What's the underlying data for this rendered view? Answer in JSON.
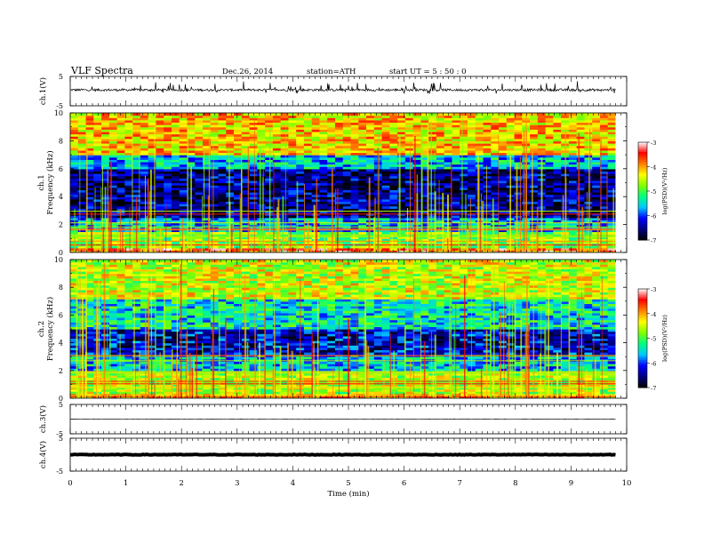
{
  "header": {
    "title": "VLF  Spectra",
    "date": "Dec.26, 2014",
    "station": "station=ATH",
    "start": "start  UT =   5 : 50 : 0"
  },
  "chart_data": [
    {
      "type": "line",
      "panel": "ch1-waveform",
      "ylabel": "ch.1(V)",
      "ylim": [
        -5,
        5
      ],
      "yticks": [
        "5",
        "-5"
      ],
      "xlim": [
        0,
        10
      ],
      "description_values": {
        "baseline_v": 0.4,
        "spike_amplitude_v": 1.5
      },
      "color": "#000000"
    },
    {
      "type": "heatmap",
      "panel": "ch1-spectrogram",
      "ylabel_channel": "ch.1",
      "ylabel": "Frequency  (kHz)",
      "ylim": [
        0,
        10
      ],
      "yticks": [
        "0",
        "2",
        "4",
        "6",
        "8",
        "10"
      ],
      "xlim": [
        0,
        9.8
      ],
      "bands": [
        {
          "f_lo": 0,
          "f_hi": 0.4,
          "level": -3.6
        },
        {
          "f_lo": 0.4,
          "f_hi": 1.5,
          "level": -4.8
        },
        {
          "f_lo": 1.5,
          "f_hi": 2.5,
          "level": -5.7
        },
        {
          "f_lo": 2.5,
          "f_hi": 6.0,
          "level": -6.5
        },
        {
          "f_lo": 6.0,
          "f_hi": 7.0,
          "level": -5.6
        },
        {
          "f_lo": 7.0,
          "f_hi": 10.0,
          "level": -4.2
        }
      ]
    },
    {
      "type": "heatmap",
      "panel": "ch2-spectrogram",
      "ylabel_channel": "ch.2",
      "ylabel": "Frequency  (kHz)",
      "ylim": [
        0,
        10
      ],
      "yticks": [
        "0",
        "2",
        "4",
        "6",
        "8",
        "10"
      ],
      "xlim": [
        0,
        9.8
      ],
      "bands": [
        {
          "f_lo": 0,
          "f_hi": 0.4,
          "level": -4.0
        },
        {
          "f_lo": 0.4,
          "f_hi": 2.0,
          "level": -4.6
        },
        {
          "f_lo": 2.0,
          "f_hi": 3.2,
          "level": -5.6
        },
        {
          "f_lo": 3.2,
          "f_hi": 5.0,
          "level": -6.3
        },
        {
          "f_lo": 5.0,
          "f_hi": 7.2,
          "level": -5.4
        },
        {
          "f_lo": 7.2,
          "f_hi": 10.0,
          "level": -4.5
        }
      ]
    },
    {
      "type": "line",
      "panel": "ch3-waveform",
      "ylabel": "ch.3(V)",
      "ylim": [
        -5,
        5
      ],
      "yticks": [
        "5",
        "-5"
      ],
      "xlim": [
        0,
        10
      ],
      "description_values": {
        "baseline_v": 0.0
      },
      "color": "#000000"
    },
    {
      "type": "line",
      "panel": "ch4-waveform",
      "ylabel": "ch.4(V)",
      "ylim": [
        -5,
        5
      ],
      "yticks": [
        "5",
        "-5"
      ],
      "xlim": [
        0,
        10
      ],
      "description_values": {
        "baseline_v": 0.0
      },
      "color": "#000000"
    }
  ],
  "xaxis": {
    "label": "Time  (min)",
    "ticks": [
      "0",
      "1",
      "2",
      "3",
      "4",
      "5",
      "6",
      "7",
      "8",
      "9",
      "10"
    ],
    "range": [
      0,
      10
    ]
  },
  "colorbar": {
    "label": "log(PSD)(V²/Hz)",
    "range": [
      -7,
      -3
    ],
    "ticks": [
      "-3",
      "-4",
      "-5",
      "-6",
      "-7"
    ],
    "colors": [
      "#000000",
      "#000080",
      "#0000ff",
      "#00c8ff",
      "#00ff80",
      "#80ff00",
      "#ffff00",
      "#ff8000",
      "#ff0000",
      "#ffffff"
    ]
  }
}
